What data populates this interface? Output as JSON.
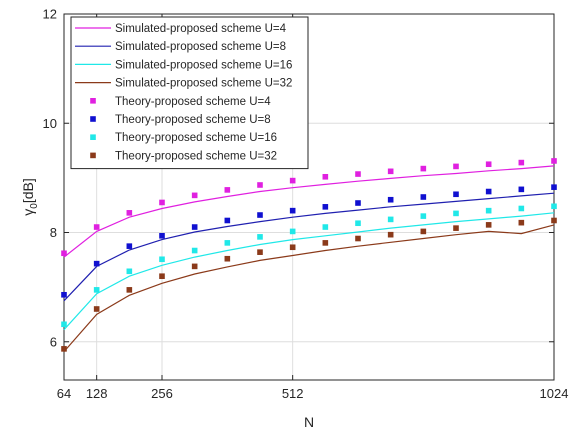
{
  "chart_data": {
    "type": "line",
    "title": "",
    "xlabel": "N",
    "ylabel_main": "γ",
    "ylabel_sub": "0",
    "ylabel_unit": "[dB]",
    "xlim": [
      64,
      1024
    ],
    "ylim": [
      5.3,
      12
    ],
    "x_ticks": [
      64,
      128,
      256,
      512,
      1024
    ],
    "x_tick_labels": [
      "64",
      "128",
      "256",
      "512",
      "1024"
    ],
    "y_ticks": [
      6,
      8,
      10,
      12
    ],
    "y_tick_labels": [
      "6",
      "8",
      "10",
      "12"
    ],
    "grid": true,
    "legend_position": "top-left",
    "x": [
      64,
      128,
      192,
      256,
      320,
      384,
      448,
      512,
      576,
      640,
      704,
      768,
      832,
      896,
      960,
      1024
    ],
    "series": [
      {
        "name": "Simulated-proposed scheme U=4",
        "kind": "line",
        "color": "#e020e0",
        "values": [
          7.55,
          8.02,
          8.28,
          8.44,
          8.56,
          8.66,
          8.75,
          8.82,
          8.88,
          8.94,
          8.99,
          9.04,
          9.08,
          9.13,
          9.17,
          9.22
        ]
      },
      {
        "name": "Simulated-proposed scheme U=8",
        "kind": "line",
        "color": "#2020b0",
        "values": [
          6.75,
          7.38,
          7.68,
          7.87,
          8.01,
          8.11,
          8.2,
          8.28,
          8.35,
          8.41,
          8.47,
          8.52,
          8.57,
          8.62,
          8.67,
          8.72
        ]
      },
      {
        "name": "Simulated-proposed scheme U=16",
        "kind": "line",
        "color": "#20e8e8",
        "values": [
          6.22,
          6.88,
          7.2,
          7.4,
          7.55,
          7.67,
          7.78,
          7.87,
          7.94,
          8.01,
          8.08,
          8.14,
          8.2,
          8.25,
          8.3,
          8.36
        ]
      },
      {
        "name": "Simulated-proposed scheme U=32",
        "kind": "line",
        "color": "#8b3a1a",
        "values": [
          5.82,
          6.5,
          6.85,
          7.07,
          7.24,
          7.37,
          7.49,
          7.58,
          7.67,
          7.75,
          7.82,
          7.89,
          7.96,
          8.02,
          7.98,
          8.14
        ]
      },
      {
        "name": "Theory-proposed scheme U=4",
        "kind": "marker",
        "color": "#e020e0",
        "values": [
          7.62,
          8.1,
          8.36,
          8.55,
          8.68,
          8.78,
          8.87,
          8.95,
          9.02,
          9.07,
          9.12,
          9.17,
          9.21,
          9.25,
          9.28,
          9.31
        ]
      },
      {
        "name": "Theory-proposed scheme U=8",
        "kind": "marker",
        "color": "#1010d0",
        "values": [
          6.86,
          7.43,
          7.75,
          7.94,
          8.1,
          8.22,
          8.32,
          8.4,
          8.47,
          8.54,
          8.6,
          8.65,
          8.7,
          8.75,
          8.79,
          8.83
        ]
      },
      {
        "name": "Theory-proposed scheme U=16",
        "kind": "marker",
        "color": "#20e8e8",
        "values": [
          6.32,
          6.95,
          7.29,
          7.51,
          7.67,
          7.81,
          7.92,
          8.02,
          8.1,
          8.17,
          8.24,
          8.3,
          8.35,
          8.4,
          8.44,
          8.48
        ]
      },
      {
        "name": "Theory-proposed scheme U=32",
        "kind": "marker",
        "color": "#8b3a1a",
        "values": [
          5.87,
          6.6,
          6.95,
          7.2,
          7.38,
          7.52,
          7.64,
          7.73,
          7.81,
          7.89,
          7.96,
          8.02,
          8.08,
          8.14,
          8.18,
          8.22
        ]
      }
    ]
  }
}
